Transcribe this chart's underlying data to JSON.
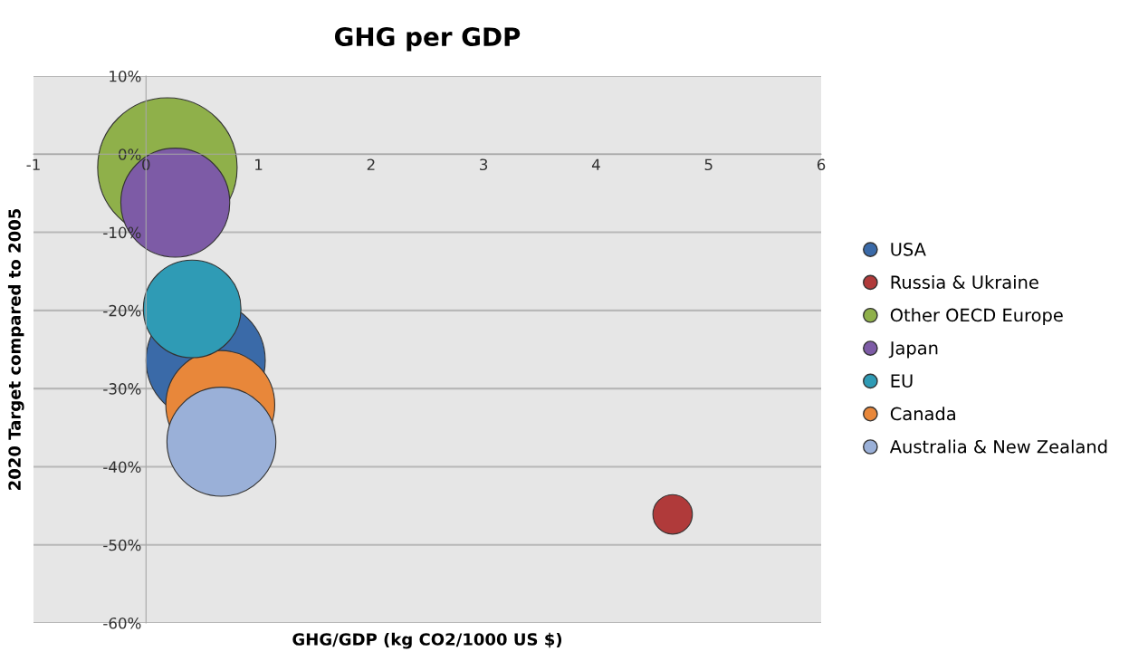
{
  "chart_data": {
    "type": "bubble",
    "title": "GHG per GDP",
    "xlabel": "GHG/GDP (kg CO2/1000 US $)",
    "ylabel": "2020 Target compared to 2005",
    "xlim": [
      -1,
      6
    ],
    "xticks": [
      -1,
      0,
      1,
      2,
      3,
      4,
      5,
      6
    ],
    "ylim": [
      -60,
      10
    ],
    "yticks": [
      {
        "value": -60,
        "label": "-60%"
      },
      {
        "value": -50,
        "label": "-50%"
      },
      {
        "value": -40,
        "label": "-40%"
      },
      {
        "value": -30,
        "label": "-30%"
      },
      {
        "value": -20,
        "label": "-20%"
      },
      {
        "value": -10,
        "label": "-10%"
      },
      {
        "value": 0,
        "label": "0%"
      },
      {
        "value": 10,
        "label": "10%"
      }
    ],
    "grid": "y",
    "legend": "right",
    "marker": "circle",
    "series": [
      {
        "name": "USA",
        "color": "#3a6aa8",
        "x": [
          0.53
        ],
        "values": [
          -26.4
        ],
        "sizes": [
          0.73
        ]
      },
      {
        "name": "Russia & Ukraine",
        "color": "#b03a3a",
        "x": [
          4.68
        ],
        "values": [
          -46.1
        ],
        "sizes": [
          0.08
        ]
      },
      {
        "name": "Other OECD Europe",
        "color": "#8fb04a",
        "x": [
          0.19
        ],
        "values": [
          -1.7
        ],
        "sizes": [
          1
        ]
      },
      {
        "name": "Japan",
        "color": "#7d5ba6",
        "x": [
          0.26
        ],
        "values": [
          -6.2
        ],
        "sizes": [
          0.61
        ]
      },
      {
        "name": "EU",
        "color": "#2f9bb5",
        "x": [
          0.41
        ],
        "values": [
          -19.8
        ],
        "sizes": [
          0.49
        ]
      },
      {
        "name": "Canada",
        "color": "#e8873a",
        "x": [
          0.66
        ],
        "values": [
          -32.1
        ],
        "sizes": [
          0.61
        ]
      },
      {
        "name": "Australia & New Zealand",
        "color": "#9ab0d8",
        "x": [
          0.67
        ],
        "values": [
          -36.8
        ],
        "sizes": [
          0.61
        ]
      }
    ]
  }
}
